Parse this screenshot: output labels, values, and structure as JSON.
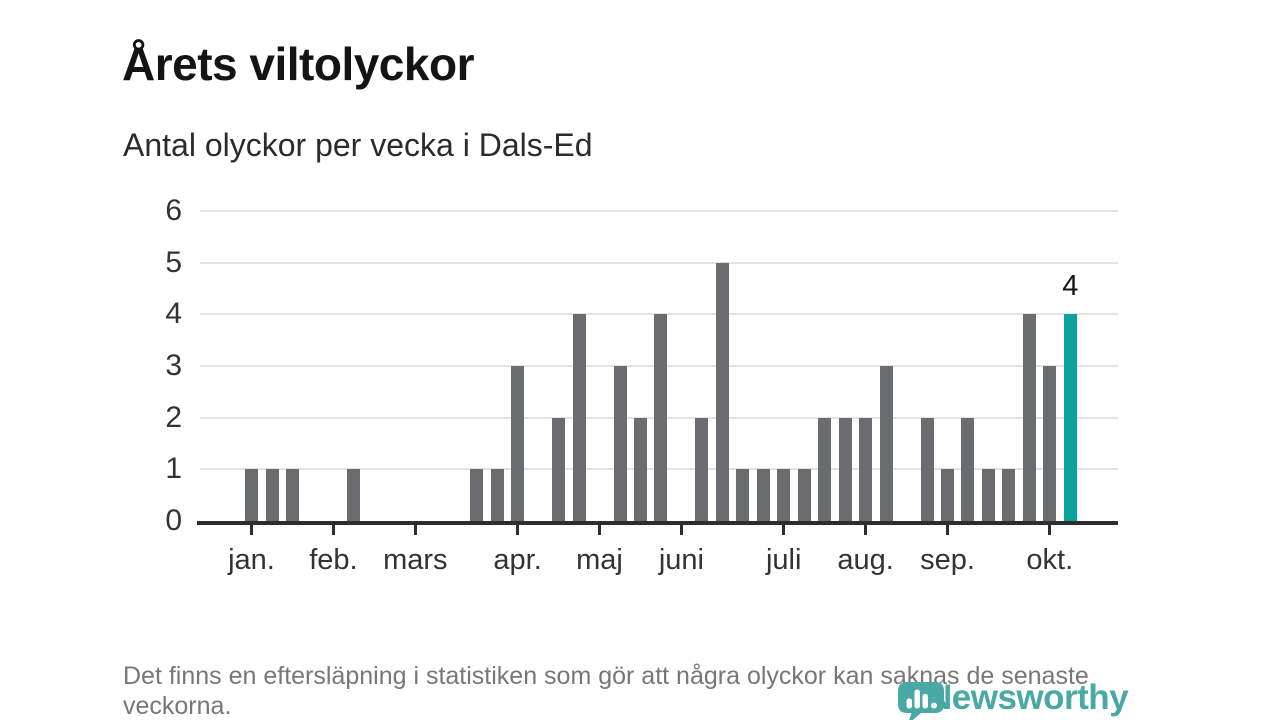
{
  "header": {
    "title": "Årets viltolyckor",
    "subtitle": "Antal olyckor per vecka i Dals-Ed"
  },
  "chart_data": {
    "type": "bar",
    "title": "Årets viltolyckor",
    "subtitle": "Antal olyckor per vecka i Dals-Ed",
    "x_description": "en stapel per vecka, vecka 1–41",
    "values": [
      1,
      1,
      1,
      0,
      0,
      1,
      0,
      0,
      0,
      0,
      0,
      1,
      1,
      3,
      0,
      2,
      4,
      0,
      3,
      2,
      4,
      0,
      2,
      5,
      1,
      1,
      1,
      1,
      2,
      2,
      2,
      3,
      0,
      2,
      1,
      2,
      1,
      1,
      4,
      3,
      4
    ],
    "y_ticks": [
      0,
      1,
      2,
      3,
      4,
      5,
      6
    ],
    "ylim": [
      0,
      6
    ],
    "grid": "horizontal-only",
    "legend": "none",
    "month_ticks": [
      {
        "label": "jan.",
        "week": 1
      },
      {
        "label": "feb.",
        "week": 5
      },
      {
        "label": "mars",
        "week": 9
      },
      {
        "label": "apr.",
        "week": 14
      },
      {
        "label": "maj",
        "week": 18
      },
      {
        "label": "juni",
        "week": 22
      },
      {
        "label": "juli",
        "week": 27
      },
      {
        "label": "aug.",
        "week": 31
      },
      {
        "label": "sep.",
        "week": 35
      },
      {
        "label": "okt.",
        "week": 40
      }
    ],
    "bar_color": "#6b6c70",
    "highlight_color": "#0ba29c",
    "highlight_index": 40,
    "highlight_label": "4"
  },
  "footer": {
    "note": "Det finns en eftersläpning i statistiken som gör att några olyckor kan saknas de senaste veckorna."
  },
  "logo": {
    "text": "Newsworthy",
    "color": "#4aa9a4"
  }
}
